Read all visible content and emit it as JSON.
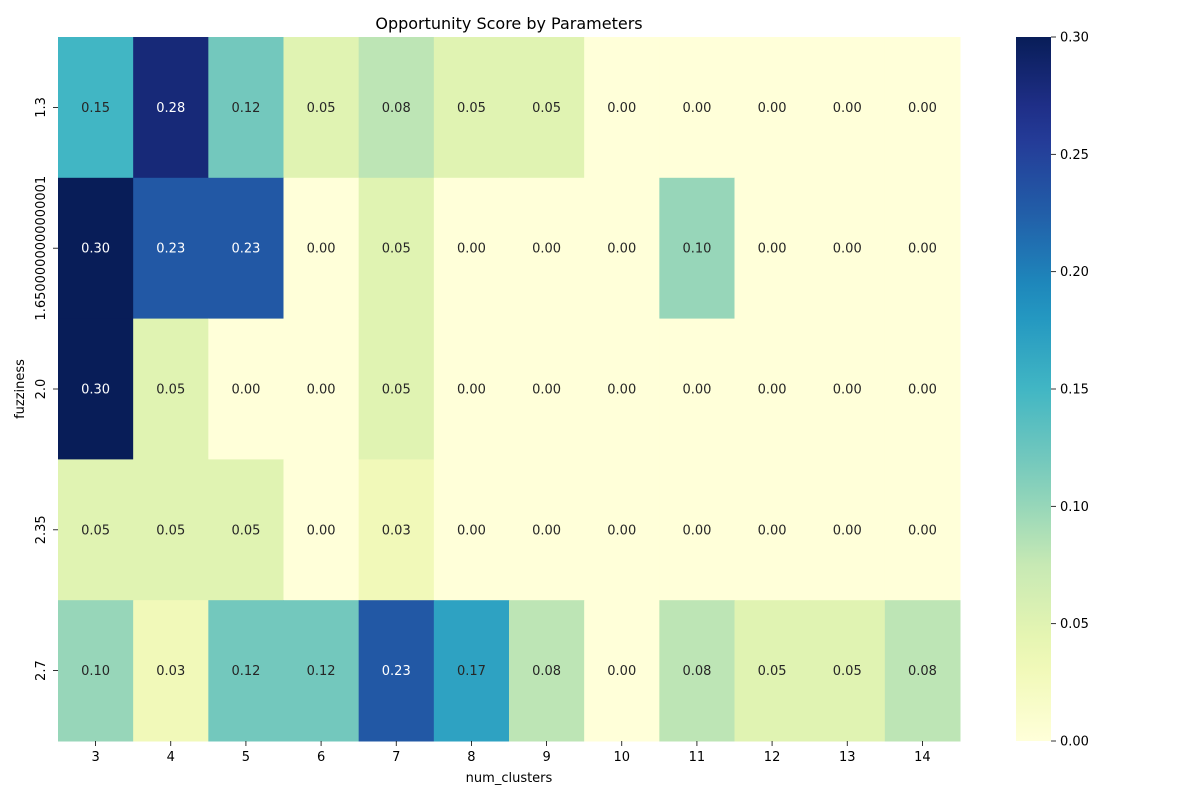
{
  "chart_data": {
    "type": "heatmap",
    "title": "Opportunity Score by Parameters",
    "xlabel": "num_clusters",
    "ylabel": "fuzziness",
    "x": [
      "3",
      "4",
      "5",
      "6",
      "7",
      "8",
      "9",
      "10",
      "11",
      "12",
      "13",
      "14"
    ],
    "y": [
      "1.3",
      "1.6500000000000001",
      "2.0",
      "2.35",
      "2.7"
    ],
    "values": [
      [
        0.15,
        0.28,
        0.12,
        0.05,
        0.08,
        0.05,
        0.05,
        0.0,
        0.0,
        0.0,
        0.0,
        0.0
      ],
      [
        0.3,
        0.23,
        0.23,
        0.0,
        0.05,
        0.0,
        0.0,
        0.0,
        0.1,
        0.0,
        0.0,
        0.0
      ],
      [
        0.3,
        0.05,
        0.0,
        0.0,
        0.05,
        0.0,
        0.0,
        0.0,
        0.0,
        0.0,
        0.0,
        0.0
      ],
      [
        0.05,
        0.05,
        0.05,
        0.0,
        0.03,
        0.0,
        0.0,
        0.0,
        0.0,
        0.0,
        0.0,
        0.0
      ],
      [
        0.1,
        0.03,
        0.12,
        0.12,
        0.23,
        0.17,
        0.08,
        0.0,
        0.08,
        0.05,
        0.05,
        0.08
      ]
    ],
    "value_format": "0.00",
    "colorscale": "YlGnBu",
    "vmin": 0.0,
    "vmax": 0.3,
    "colorbar_ticks": [
      "0.00",
      "0.05",
      "0.10",
      "0.15",
      "0.20",
      "0.25",
      "0.30"
    ]
  }
}
